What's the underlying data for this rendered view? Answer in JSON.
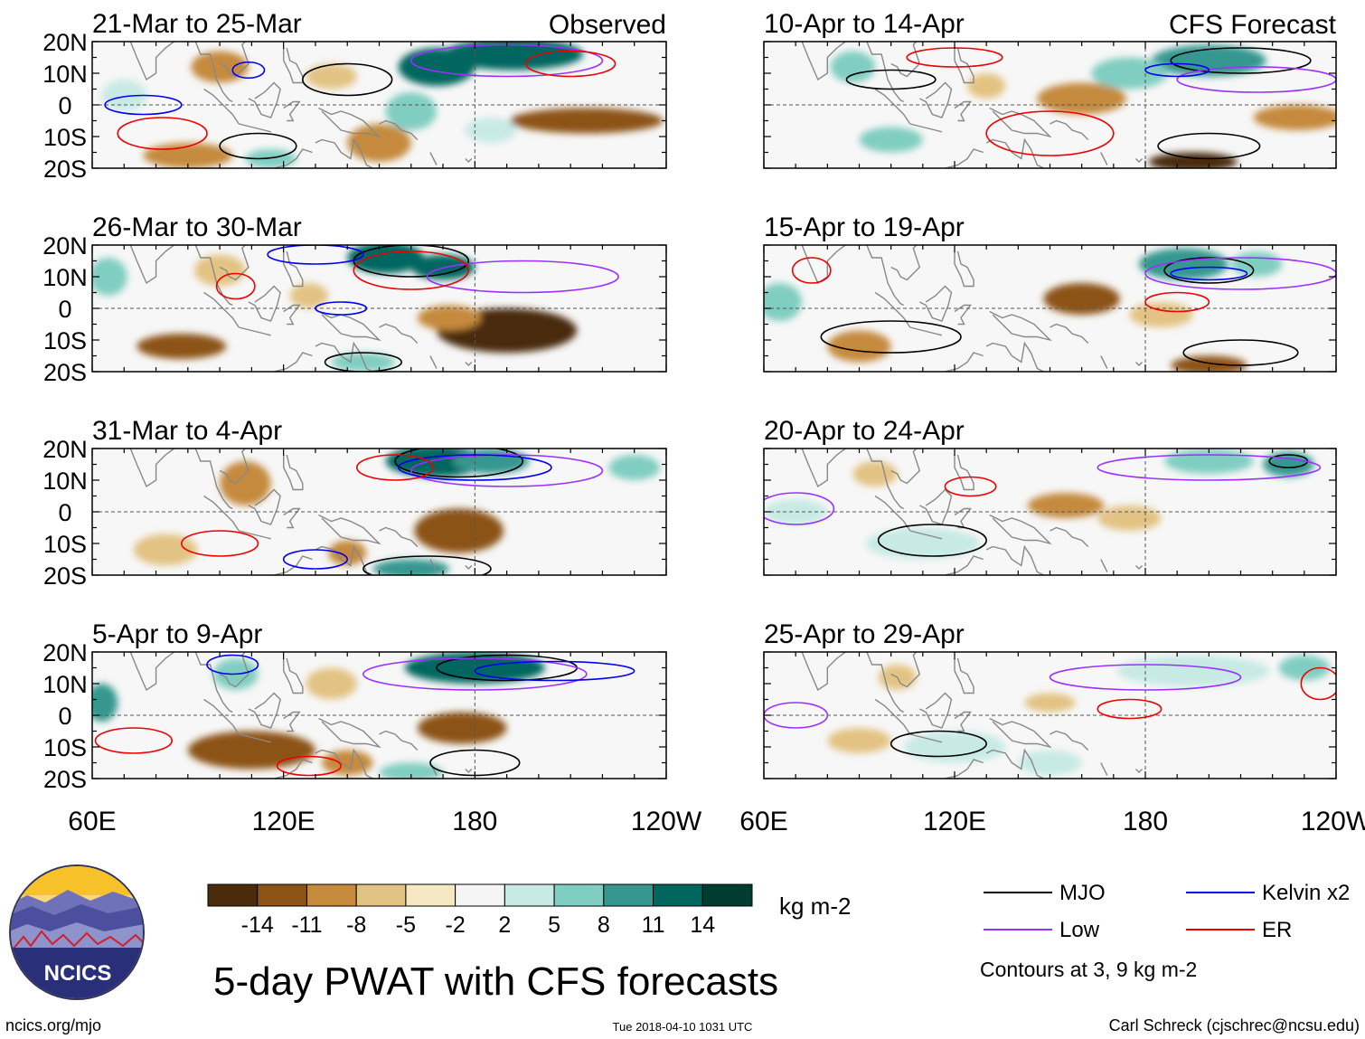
{
  "figure": {
    "title": "5-day PWAT with CFS forecasts",
    "website": "ncics.org/mjo",
    "timestamp": "Tue 2018-04-10 1031 UTC",
    "author": "Carl Schreck (cjschrec@ncsu.edu)",
    "logo_text": "NCICS",
    "contour_note": "Contours at 3, 9 kg m-2",
    "colors": {
      "brown_dark": "#4a2c0c",
      "brown": "#8c5216",
      "tan": "#c58a3c",
      "sand": "#e3c383",
      "cream": "#f6e8c3",
      "teal_light": "#c7eae5",
      "teal": "#80cdc1",
      "teal_mid": "#35978f",
      "teal_dark": "#01665e",
      "teal_deep": "#003c30",
      "mjo": "#000000",
      "low": "#9b30ff",
      "kelvin": "#0000ee",
      "er": "#ee0000",
      "coast": "#888888"
    }
  },
  "colorbar": {
    "units": "kg m-2",
    "ticks": [
      "-14",
      "-11",
      "-8",
      "-5",
      "-2",
      "2",
      "5",
      "8",
      "11",
      "14"
    ],
    "fill_colors": [
      "#4a2c0c",
      "#8c5216",
      "#c58a3c",
      "#e3c383",
      "#f6e8c3",
      "#f5f5f5",
      "#c7eae5",
      "#80cdc1",
      "#35978f",
      "#01665e",
      "#003c30"
    ]
  },
  "legend": [
    {
      "label": "MJO",
      "color": "#000000"
    },
    {
      "label": "Kelvin x2",
      "color": "#0000ee"
    },
    {
      "label": "Low",
      "color": "#9b30ff"
    },
    {
      "label": "ER",
      "color": "#ee0000"
    }
  ],
  "chart_data": {
    "type": "heatmap",
    "title": "5-day PWAT with CFS forecasts",
    "variable": "Precipitable water anomaly",
    "units": "kg m-2",
    "x_ticks": [
      "60E",
      "120E",
      "180",
      "120W"
    ],
    "x_range": [
      60,
      240
    ],
    "y_ticks": [
      "20N",
      "10N",
      "0",
      "10S",
      "20S"
    ],
    "y_range": [
      -20,
      20
    ],
    "columns": [
      {
        "label": "Observed",
        "panels": [
          "21-Mar to 25-Mar",
          "26-Mar to 30-Mar",
          "31-Mar to 4-Apr",
          "5-Apr to 9-Apr"
        ]
      },
      {
        "label": "CFS Forecast",
        "panels": [
          "10-Apr to 14-Apr",
          "15-Apr to 19-Apr",
          "20-Apr to 24-Apr",
          "25-Apr to 29-Apr"
        ]
      }
    ],
    "panels": [
      {
        "label": "21-Mar to 25-Mar",
        "anomalies": [
          {
            "lon": 100,
            "lat": 12,
            "rx": 9,
            "ry": 5,
            "value": -8
          },
          {
            "lon": 135,
            "lat": 9,
            "rx": 8,
            "ry": 4,
            "value": -6
          },
          {
            "lon": 168,
            "lat": 12,
            "rx": 12,
            "ry": 6,
            "value": 12
          },
          {
            "lon": 192,
            "lat": 16,
            "rx": 22,
            "ry": 5,
            "value": 14
          },
          {
            "lon": 215,
            "lat": -5,
            "rx": 24,
            "ry": 4,
            "value": -11
          },
          {
            "lon": 160,
            "lat": -2,
            "rx": 8,
            "ry": 6,
            "value": 6
          },
          {
            "lon": 150,
            "lat": -12,
            "rx": 10,
            "ry": 6,
            "value": -8
          },
          {
            "lon": 116,
            "lat": -17,
            "rx": 8,
            "ry": 3,
            "value": 8
          },
          {
            "lon": 90,
            "lat": -16,
            "rx": 14,
            "ry": 4,
            "value": -8
          },
          {
            "lon": 70,
            "lat": 3,
            "rx": 7,
            "ry": 5,
            "value": 5
          },
          {
            "lon": 185,
            "lat": -8,
            "rx": 8,
            "ry": 4,
            "value": 5
          }
        ],
        "contours": [
          {
            "wave": "MJO",
            "lon": 140,
            "lat": 8,
            "rx": 14,
            "ry": 5
          },
          {
            "wave": "MJO",
            "lon": 112,
            "lat": -13,
            "rx": 12,
            "ry": 4
          },
          {
            "wave": "Low",
            "lon": 190,
            "lat": 14,
            "rx": 30,
            "ry": 5
          },
          {
            "wave": "Kelvin",
            "lon": 76,
            "lat": 0,
            "rx": 12,
            "ry": 3
          },
          {
            "wave": "Kelvin",
            "lon": 109,
            "lat": 11,
            "rx": 5,
            "ry": 2.5
          },
          {
            "wave": "ER",
            "lon": 82,
            "lat": -9,
            "rx": 14,
            "ry": 5
          },
          {
            "wave": "ER",
            "lon": 210,
            "lat": 13,
            "rx": 14,
            "ry": 4
          }
        ]
      },
      {
        "label": "26-Mar to 30-Mar",
        "anomalies": [
          {
            "lon": 152,
            "lat": 16,
            "rx": 12,
            "ry": 5,
            "value": 14
          },
          {
            "lon": 170,
            "lat": 13,
            "rx": 10,
            "ry": 4,
            "value": 14
          },
          {
            "lon": 190,
            "lat": -7,
            "rx": 22,
            "ry": 7,
            "value": -14
          },
          {
            "lon": 172,
            "lat": -3,
            "rx": 10,
            "ry": 4,
            "value": -8
          },
          {
            "lon": 88,
            "lat": -12,
            "rx": 14,
            "ry": 4,
            "value": -11
          },
          {
            "lon": 100,
            "lat": 12,
            "rx": 8,
            "ry": 5,
            "value": -6
          },
          {
            "lon": 65,
            "lat": 10,
            "rx": 6,
            "ry": 6,
            "value": 8
          },
          {
            "lon": 145,
            "lat": -17,
            "rx": 10,
            "ry": 3,
            "value": 6
          },
          {
            "lon": 128,
            "lat": 4,
            "rx": 6,
            "ry": 4,
            "value": -5
          }
        ],
        "contours": [
          {
            "wave": "MJO",
            "lon": 160,
            "lat": 15,
            "rx": 18,
            "ry": 5
          },
          {
            "wave": "MJO",
            "lon": 145,
            "lat": -17,
            "rx": 12,
            "ry": 3
          },
          {
            "wave": "Low",
            "lon": 195,
            "lat": 10,
            "rx": 30,
            "ry": 5
          },
          {
            "wave": "Kelvin",
            "lon": 130,
            "lat": 17,
            "rx": 15,
            "ry": 3
          },
          {
            "wave": "Kelvin",
            "lon": 138,
            "lat": 0,
            "rx": 8,
            "ry": 2
          },
          {
            "wave": "ER",
            "lon": 160,
            "lat": 12,
            "rx": 18,
            "ry": 6
          },
          {
            "wave": "ER",
            "lon": 105,
            "lat": 7,
            "rx": 6,
            "ry": 4
          }
        ]
      },
      {
        "label": "31-Mar to 4-Apr",
        "anomalies": [
          {
            "lon": 168,
            "lat": 16,
            "rx": 16,
            "ry": 5,
            "value": 14
          },
          {
            "lon": 185,
            "lat": 16,
            "rx": 12,
            "ry": 4,
            "value": 11
          },
          {
            "lon": 175,
            "lat": -6,
            "rx": 14,
            "ry": 7,
            "value": -11
          },
          {
            "lon": 108,
            "lat": 9,
            "rx": 8,
            "ry": 7,
            "value": -8
          },
          {
            "lon": 83,
            "lat": -12,
            "rx": 10,
            "ry": 5,
            "value": -6
          },
          {
            "lon": 160,
            "lat": -18,
            "rx": 12,
            "ry": 3,
            "value": 11
          },
          {
            "lon": 140,
            "lat": -13,
            "rx": 6,
            "ry": 4,
            "value": -8
          },
          {
            "lon": 230,
            "lat": 14,
            "rx": 8,
            "ry": 4,
            "value": 6
          }
        ],
        "contours": [
          {
            "wave": "MJO",
            "lon": 165,
            "lat": -18,
            "rx": 20,
            "ry": 4
          },
          {
            "wave": "MJO",
            "lon": 175,
            "lat": 16,
            "rx": 20,
            "ry": 5
          },
          {
            "wave": "Low",
            "lon": 190,
            "lat": 13,
            "rx": 30,
            "ry": 5
          },
          {
            "wave": "Kelvin",
            "lon": 180,
            "lat": 14,
            "rx": 24,
            "ry": 4
          },
          {
            "wave": "Kelvin",
            "lon": 130,
            "lat": -15,
            "rx": 10,
            "ry": 3
          },
          {
            "wave": "ER",
            "lon": 155,
            "lat": 14,
            "rx": 12,
            "ry": 4
          },
          {
            "wave": "ER",
            "lon": 100,
            "lat": -10,
            "rx": 12,
            "ry": 4
          }
        ]
      },
      {
        "label": "5-Apr to 9-Apr",
        "anomalies": [
          {
            "lon": 180,
            "lat": 15,
            "rx": 22,
            "ry": 5,
            "value": 14
          },
          {
            "lon": 176,
            "lat": -4,
            "rx": 14,
            "ry": 5,
            "value": -11
          },
          {
            "lon": 110,
            "lat": -11,
            "rx": 20,
            "ry": 6,
            "value": -11
          },
          {
            "lon": 105,
            "lat": 13,
            "rx": 7,
            "ry": 5,
            "value": 8
          },
          {
            "lon": 63,
            "lat": 4,
            "rx": 5,
            "ry": 6,
            "value": 11
          },
          {
            "lon": 135,
            "lat": 10,
            "rx": 8,
            "ry": 5,
            "value": -5
          },
          {
            "lon": 160,
            "lat": -18,
            "rx": 10,
            "ry": 3,
            "value": 8
          },
          {
            "lon": 140,
            "lat": -15,
            "rx": 8,
            "ry": 4,
            "value": -8
          }
        ],
        "contours": [
          {
            "wave": "MJO",
            "lon": 190,
            "lat": 15,
            "rx": 22,
            "ry": 4
          },
          {
            "wave": "MJO",
            "lon": 180,
            "lat": -15,
            "rx": 14,
            "ry": 4
          },
          {
            "wave": "Low",
            "lon": 180,
            "lat": 13,
            "rx": 35,
            "ry": 5
          },
          {
            "wave": "Kelvin",
            "lon": 205,
            "lat": 14,
            "rx": 25,
            "ry": 3
          },
          {
            "wave": "Kelvin",
            "lon": 104,
            "lat": 16,
            "rx": 8,
            "ry": 3
          },
          {
            "wave": "ER",
            "lon": 73,
            "lat": -8,
            "rx": 12,
            "ry": 4
          },
          {
            "wave": "ER",
            "lon": 128,
            "lat": -16,
            "rx": 10,
            "ry": 3
          }
        ]
      },
      {
        "label": "10-Apr to 14-Apr",
        "anomalies": [
          {
            "lon": 200,
            "lat": 14,
            "rx": 18,
            "ry": 5,
            "value": 11
          },
          {
            "lon": 88,
            "lat": 12,
            "rx": 7,
            "ry": 5,
            "value": 8
          },
          {
            "lon": 100,
            "lat": -11,
            "rx": 10,
            "ry": 4,
            "value": 8
          },
          {
            "lon": 160,
            "lat": 2,
            "rx": 14,
            "ry": 5,
            "value": -8
          },
          {
            "lon": 195,
            "lat": -18,
            "rx": 14,
            "ry": 3,
            "value": -14
          },
          {
            "lon": 228,
            "lat": -4,
            "rx": 14,
            "ry": 4,
            "value": -8
          },
          {
            "lon": 175,
            "lat": 10,
            "rx": 12,
            "ry": 5,
            "value": 8
          },
          {
            "lon": 130,
            "lat": 6,
            "rx": 6,
            "ry": 4,
            "value": -5
          }
        ],
        "contours": [
          {
            "wave": "MJO",
            "lon": 210,
            "lat": 14,
            "rx": 22,
            "ry": 4
          },
          {
            "wave": "MJO",
            "lon": 100,
            "lat": 8,
            "rx": 14,
            "ry": 3
          },
          {
            "wave": "MJO",
            "lon": 200,
            "lat": -13,
            "rx": 16,
            "ry": 4
          },
          {
            "wave": "Low",
            "lon": 215,
            "lat": 8,
            "rx": 25,
            "ry": 4
          },
          {
            "wave": "Kelvin",
            "lon": 190,
            "lat": 11,
            "rx": 10,
            "ry": 2
          },
          {
            "wave": "ER",
            "lon": 150,
            "lat": -9,
            "rx": 20,
            "ry": 7
          },
          {
            "wave": "ER",
            "lon": 120,
            "lat": 15,
            "rx": 15,
            "ry": 3
          }
        ]
      },
      {
        "label": "15-Apr to 19-Apr",
        "anomalies": [
          {
            "lon": 160,
            "lat": 3,
            "rx": 12,
            "ry": 5,
            "value": -11
          },
          {
            "lon": 192,
            "lat": 14,
            "rx": 14,
            "ry": 5,
            "value": 11
          },
          {
            "lon": 65,
            "lat": 2,
            "rx": 7,
            "ry": 6,
            "value": 8
          },
          {
            "lon": 90,
            "lat": -12,
            "rx": 10,
            "ry": 5,
            "value": -8
          },
          {
            "lon": 215,
            "lat": 14,
            "rx": 8,
            "ry": 4,
            "value": 8
          },
          {
            "lon": 200,
            "lat": -18,
            "rx": 12,
            "ry": 3,
            "value": -11
          },
          {
            "lon": 185,
            "lat": -2,
            "rx": 10,
            "ry": 4,
            "value": -6
          }
        ],
        "contours": [
          {
            "wave": "MJO",
            "lon": 100,
            "lat": -9,
            "rx": 22,
            "ry": 5
          },
          {
            "wave": "MJO",
            "lon": 200,
            "lat": 12,
            "rx": 14,
            "ry": 4
          },
          {
            "wave": "MJO",
            "lon": 210,
            "lat": -14,
            "rx": 18,
            "ry": 4
          },
          {
            "wave": "Low",
            "lon": 210,
            "lat": 11,
            "rx": 30,
            "ry": 5
          },
          {
            "wave": "Kelvin",
            "lon": 200,
            "lat": 11,
            "rx": 12,
            "ry": 2
          },
          {
            "wave": "ER",
            "lon": 190,
            "lat": 2,
            "rx": 10,
            "ry": 3
          },
          {
            "wave": "ER",
            "lon": 75,
            "lat": 12,
            "rx": 6,
            "ry": 4
          }
        ]
      },
      {
        "label": "20-Apr to 24-Apr",
        "anomalies": [
          {
            "lon": 155,
            "lat": 2,
            "rx": 12,
            "ry": 4,
            "value": -8
          },
          {
            "lon": 200,
            "lat": 16,
            "rx": 14,
            "ry": 4,
            "value": 8
          },
          {
            "lon": 225,
            "lat": 15,
            "rx": 8,
            "ry": 4,
            "value": 11
          },
          {
            "lon": 95,
            "lat": 12,
            "rx": 7,
            "ry": 4,
            "value": -6
          },
          {
            "lon": 110,
            "lat": -10,
            "rx": 18,
            "ry": 5,
            "value": 5
          },
          {
            "lon": 70,
            "lat": 0,
            "rx": 10,
            "ry": 4,
            "value": 5
          },
          {
            "lon": 175,
            "lat": -2,
            "rx": 10,
            "ry": 4,
            "value": -6
          }
        ],
        "contours": [
          {
            "wave": "MJO",
            "lon": 113,
            "lat": -9,
            "rx": 17,
            "ry": 5
          },
          {
            "wave": "MJO",
            "lon": 225,
            "lat": 16,
            "rx": 6,
            "ry": 2
          },
          {
            "wave": "Low",
            "lon": 200,
            "lat": 14,
            "rx": 35,
            "ry": 4
          },
          {
            "wave": "ER",
            "lon": 125,
            "lat": 8,
            "rx": 8,
            "ry": 3
          },
          {
            "wave": "Low",
            "lon": 70,
            "lat": 1,
            "rx": 12,
            "ry": 5
          }
        ]
      },
      {
        "label": "25-Apr to 29-Apr",
        "anomalies": [
          {
            "lon": 102,
            "lat": 12,
            "rx": 6,
            "ry": 4,
            "value": -6
          },
          {
            "lon": 150,
            "lat": 4,
            "rx": 8,
            "ry": 3,
            "value": -6
          },
          {
            "lon": 195,
            "lat": 14,
            "rx": 24,
            "ry": 5,
            "value": 5
          },
          {
            "lon": 120,
            "lat": -10,
            "rx": 16,
            "ry": 5,
            "value": 5
          },
          {
            "lon": 90,
            "lat": -8,
            "rx": 10,
            "ry": 4,
            "value": -5
          },
          {
            "lon": 230,
            "lat": 15,
            "rx": 8,
            "ry": 4,
            "value": 8
          },
          {
            "lon": 150,
            "lat": -15,
            "rx": 10,
            "ry": 4,
            "value": 5
          }
        ],
        "contours": [
          {
            "wave": "MJO",
            "lon": 115,
            "lat": -9,
            "rx": 15,
            "ry": 4
          },
          {
            "wave": "Low",
            "lon": 180,
            "lat": 12,
            "rx": 30,
            "ry": 4
          },
          {
            "wave": "Low",
            "lon": 70,
            "lat": 0,
            "rx": 10,
            "ry": 4
          },
          {
            "wave": "ER",
            "lon": 175,
            "lat": 2,
            "rx": 10,
            "ry": 3
          },
          {
            "wave": "ER",
            "lon": 235,
            "lat": 10,
            "rx": 6,
            "ry": 5
          }
        ]
      }
    ]
  }
}
